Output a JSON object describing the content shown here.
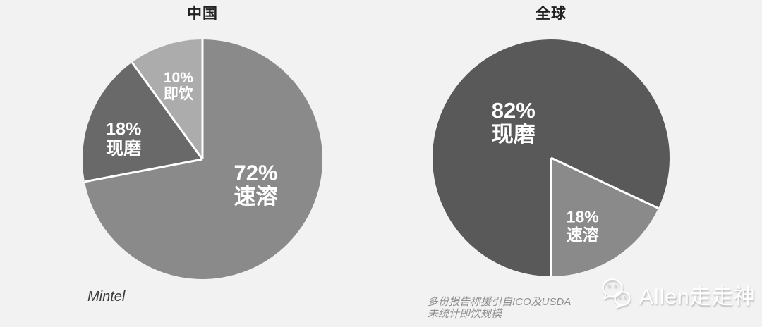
{
  "page": {
    "background_color": "#f2f2f2",
    "separator_color": "#ffffff"
  },
  "chart_data": [
    {
      "type": "pie",
      "title": "中国",
      "start_angle": 0,
      "direction": "clockwise",
      "legend_position": "none",
      "slices": [
        {
          "label": "速溶",
          "value": 72,
          "color": "#8a8a8a",
          "text_color": "#ffffff",
          "label_angle": 115,
          "label_radius": 0.49,
          "font_size": 31
        },
        {
          "label": "现磨",
          "value": 18,
          "color": "#696969",
          "text_color": "#ffffff",
          "label_angle": 285,
          "label_radius": 0.68,
          "font_size": 25
        },
        {
          "label": "即饮",
          "value": 10,
          "color": "#acacac",
          "text_color": "#ffffff",
          "label_angle": 342,
          "label_radius": 0.65,
          "font_size": 21
        }
      ],
      "source": "Mintel"
    },
    {
      "type": "pie",
      "title": "全球",
      "start_angle": 180,
      "direction": "clockwise",
      "legend_position": "none",
      "slices": [
        {
          "label": "现磨",
          "value": 82,
          "color": "#595959",
          "text_color": "#ffffff",
          "label_angle": 314,
          "label_radius": 0.44,
          "font_size": 31
        },
        {
          "label": "速溶",
          "value": 18,
          "color": "#8a8a8a",
          "text_color": "#ffffff",
          "label_angle": 155,
          "label_radius": 0.63,
          "font_size": 23
        }
      ],
      "source_lines": [
        "多份报告称援引自ICO及USDA",
        "未统计即饮规模"
      ]
    }
  ],
  "watermark": {
    "icon": "wechat-icon",
    "text": "Allen走走神"
  }
}
